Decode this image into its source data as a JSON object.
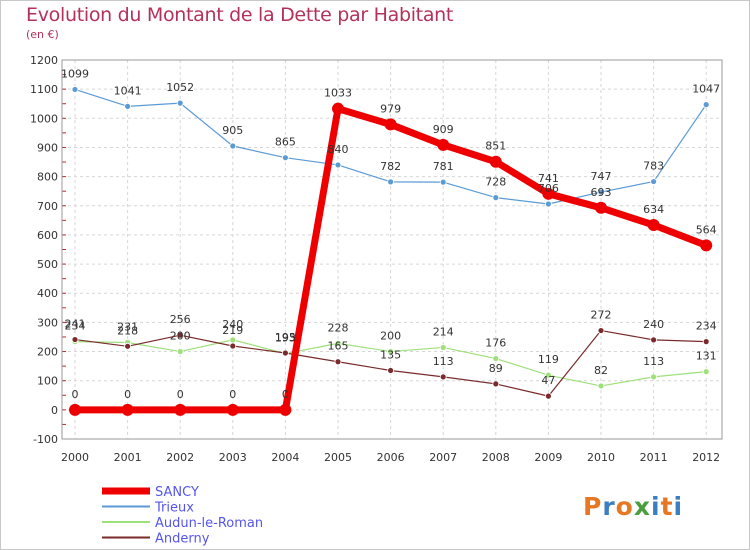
{
  "header": {
    "title": "Evolution du Montant de la Dette par Habitant",
    "subtitle": "(en €)"
  },
  "logo": {
    "letters": [
      "P",
      "r",
      "o",
      "x",
      "i",
      "t",
      "i"
    ],
    "colors": [
      "#e87722",
      "#3a7fc2",
      "#e87722",
      "#4a9e3f",
      "#3a7fc2",
      "#e87722",
      "#3a7fc2"
    ]
  },
  "chart_data": {
    "type": "line",
    "title": "Evolution du Montant de la Dette par Habitant",
    "subtitle": "(en €)",
    "xlabel": "",
    "ylabel": "",
    "categories": [
      "2000",
      "2001",
      "2002",
      "2003",
      "2004",
      "2005",
      "2006",
      "2007",
      "2008",
      "2009",
      "2010",
      "2011",
      "2012"
    ],
    "ylim": [
      -100,
      1200
    ],
    "yticks": [
      -100,
      0,
      100,
      200,
      300,
      400,
      500,
      600,
      700,
      800,
      900,
      1000,
      1100,
      1200
    ],
    "grid": true,
    "legend_position": "bottom-left",
    "series": [
      {
        "name": "Trieux",
        "color": "#5b9bd5",
        "width": 1.2,
        "marker": 3,
        "labelColor": "#333333",
        "values": [
          1099,
          1041,
          1052,
          905,
          865,
          840,
          782,
          781,
          728,
          706,
          747,
          783,
          1047
        ]
      },
      {
        "name": "Audun-le-Roman",
        "color": "#9ee07a",
        "width": 1.2,
        "marker": 3,
        "labelColor": "#333333",
        "values": [
          234,
          231,
          200,
          240,
          193,
          228,
          200,
          214,
          176,
          119,
          82,
          113,
          131
        ]
      },
      {
        "name": "Anderny",
        "color": "#7a2a2a",
        "width": 1.2,
        "marker": 3,
        "labelColor": "#333333",
        "values": [
          241,
          218,
          256,
          219,
          195,
          165,
          135,
          113,
          89,
          47,
          272,
          240,
          234
        ]
      },
      {
        "name": "SANCY",
        "color": "#ee0000",
        "width": 7,
        "marker": 6,
        "labelColor": "#333333",
        "values": [
          0,
          0,
          0,
          0,
          0,
          1033,
          979,
          909,
          851,
          741,
          693,
          634,
          564
        ]
      }
    ],
    "legend": [
      {
        "name": "SANCY",
        "color": "#ee0000",
        "width": 7,
        "textColor": "#5555ee"
      },
      {
        "name": "Trieux",
        "color": "#5b9bd5",
        "width": 2,
        "textColor": "#5555ee"
      },
      {
        "name": "Audun-le-Roman",
        "color": "#9ee07a",
        "width": 2,
        "textColor": "#5555ee"
      },
      {
        "name": "Anderny",
        "color": "#7a2a2a",
        "width": 2,
        "textColor": "#5555ee"
      }
    ]
  }
}
